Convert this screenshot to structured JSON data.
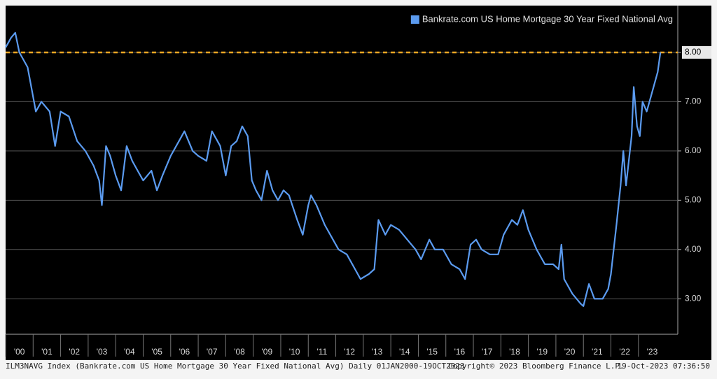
{
  "chart_data": {
    "type": "line",
    "series": [
      {
        "name": "Bankrate.com US Home Mortgage 30 Year Fixed National Avg",
        "color": "#5b9bf0",
        "x": [
          2000.0,
          2000.2,
          2000.35,
          2000.5,
          2000.8,
          2001.0,
          2001.1,
          2001.3,
          2001.6,
          2001.8,
          2002.0,
          2002.3,
          2002.6,
          2002.9,
          2003.2,
          2003.4,
          2003.5,
          2003.65,
          2003.8,
          2004.0,
          2004.2,
          2004.4,
          2004.6,
          2004.8,
          2005.0,
          2005.3,
          2005.5,
          2005.7,
          2006.0,
          2006.3,
          2006.5,
          2006.8,
          2007.0,
          2007.3,
          2007.5,
          2007.8,
          2008.0,
          2008.2,
          2008.4,
          2008.6,
          2008.8,
          2008.95,
          2009.1,
          2009.3,
          2009.5,
          2009.7,
          2009.9,
          2010.1,
          2010.3,
          2010.6,
          2010.8,
          2011.0,
          2011.1,
          2011.3,
          2011.6,
          2011.9,
          2012.1,
          2012.4,
          2012.7,
          2012.9,
          2013.2,
          2013.4,
          2013.55,
          2013.8,
          2014.0,
          2014.3,
          2014.6,
          2014.9,
          2015.1,
          2015.4,
          2015.6,
          2015.9,
          2016.2,
          2016.5,
          2016.7,
          2016.9,
          2017.1,
          2017.3,
          2017.6,
          2017.9,
          2018.1,
          2018.4,
          2018.6,
          2018.8,
          2019.0,
          2019.3,
          2019.6,
          2019.9,
          2020.1,
          2020.2,
          2020.3,
          2020.6,
          2020.9,
          2021.0,
          2021.2,
          2021.4,
          2021.7,
          2021.9,
          2022.0,
          2022.2,
          2022.35,
          2022.45,
          2022.55,
          2022.75,
          2022.83,
          2022.95,
          2023.05,
          2023.15,
          2023.3,
          2023.45,
          2023.6,
          2023.7,
          2023.8
        ],
        "values": [
          8.1,
          8.3,
          8.4,
          8.0,
          7.7,
          7.1,
          6.8,
          7.0,
          6.8,
          6.1,
          6.8,
          6.7,
          6.2,
          6.0,
          5.7,
          5.4,
          4.9,
          6.1,
          5.9,
          5.5,
          5.2,
          6.1,
          5.8,
          5.6,
          5.4,
          5.6,
          5.2,
          5.5,
          5.9,
          6.2,
          6.4,
          6.0,
          5.9,
          5.8,
          6.4,
          6.1,
          5.5,
          6.1,
          6.2,
          6.5,
          6.3,
          5.4,
          5.2,
          5.0,
          5.6,
          5.2,
          5.0,
          5.2,
          5.1,
          4.6,
          4.3,
          4.9,
          5.1,
          4.9,
          4.5,
          4.2,
          4.0,
          3.9,
          3.6,
          3.4,
          3.5,
          3.6,
          4.6,
          4.3,
          4.5,
          4.4,
          4.2,
          4.0,
          3.8,
          4.2,
          4.0,
          4.0,
          3.7,
          3.6,
          3.4,
          4.1,
          4.2,
          4.0,
          3.9,
          3.9,
          4.3,
          4.6,
          4.5,
          4.8,
          4.4,
          4.0,
          3.7,
          3.7,
          3.6,
          4.1,
          3.4,
          3.1,
          2.9,
          2.85,
          3.3,
          3.0,
          3.0,
          3.2,
          3.5,
          4.5,
          5.3,
          6.0,
          5.3,
          6.3,
          7.3,
          6.5,
          6.3,
          7.0,
          6.8,
          7.1,
          7.4,
          7.6,
          8.0
        ]
      }
    ],
    "reference_line": {
      "value": 8,
      "color": "#f5a623"
    },
    "xlim": [
      2000,
      2024.43
    ],
    "xticks": [
      {
        "value": 2000,
        "label": "'00"
      },
      {
        "value": 2001,
        "label": "'01"
      },
      {
        "value": 2002,
        "label": "'02"
      },
      {
        "value": 2003,
        "label": "'03"
      },
      {
        "value": 2004,
        "label": "'04"
      },
      {
        "value": 2005,
        "label": "'05"
      },
      {
        "value": 2006,
        "label": "'06"
      },
      {
        "value": 2007,
        "label": "'07"
      },
      {
        "value": 2008,
        "label": "'08"
      },
      {
        "value": 2009,
        "label": "'09"
      },
      {
        "value": 2010,
        "label": "'10"
      },
      {
        "value": 2011,
        "label": "'11"
      },
      {
        "value": 2012,
        "label": "'12"
      },
      {
        "value": 2013,
        "label": "'13"
      },
      {
        "value": 2014,
        "label": "'14"
      },
      {
        "value": 2015,
        "label": "'15"
      },
      {
        "value": 2016,
        "label": "'16"
      },
      {
        "value": 2017,
        "label": "'17"
      },
      {
        "value": 2018,
        "label": "'18"
      },
      {
        "value": 2019,
        "label": "'19"
      },
      {
        "value": 2020,
        "label": "'20"
      },
      {
        "value": 2021,
        "label": "'21"
      },
      {
        "value": 2022,
        "label": "'22"
      },
      {
        "value": 2023,
        "label": "'23"
      }
    ],
    "ylim": [
      2.28,
      8.95
    ],
    "yticks": [
      {
        "value": 3,
        "label": "3.00"
      },
      {
        "value": 4,
        "label": "4.00"
      },
      {
        "value": 5,
        "label": "5.00"
      },
      {
        "value": 6,
        "label": "6.00"
      },
      {
        "value": 7,
        "label": "7.00"
      },
      {
        "value": 8,
        "label": "8.00"
      }
    ],
    "grid": true,
    "legend": "top-right",
    "footer": {
      "left": "ILM3NAVG Index (Bankrate.com US Home Mortgage 30 Year Fixed National Avg)  Daily 01JAN2000-19OCT2023",
      "center": "Copyright© 2023 Bloomberg Finance L.P.",
      "right": "19-Oct-2023 07:36:50"
    }
  }
}
